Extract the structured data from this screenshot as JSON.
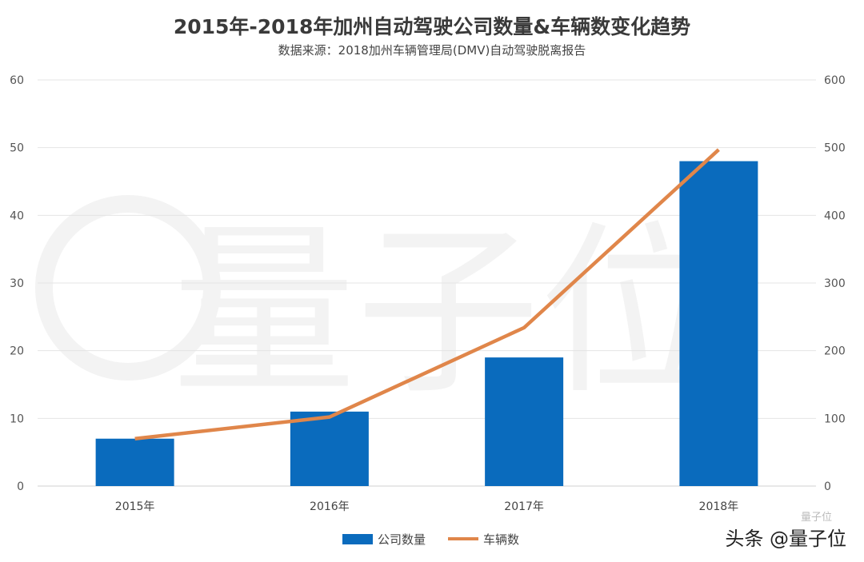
{
  "chart_data": {
    "type": "bar+line",
    "title": "2015年-2018年加州自动驾驶公司数量&车辆数变化趋势",
    "subtitle": "数据来源：2018加州车辆管理局(DMV)自动驾驶脱离报告",
    "categories": [
      "2015年",
      "2016年",
      "2017年",
      "2018年"
    ],
    "series": [
      {
        "name": "公司数量",
        "type": "bar",
        "axis": "left",
        "color": "#0a6bbd",
        "values": [
          7,
          11,
          19,
          48
        ]
      },
      {
        "name": "车辆数",
        "type": "line",
        "axis": "right",
        "color": "#e0864a",
        "values": [
          70,
          102,
          234,
          497
        ]
      }
    ],
    "y_left": {
      "range": [
        0,
        60
      ],
      "ticks": [
        "0",
        "10",
        "20",
        "30",
        "40",
        "50",
        "60"
      ]
    },
    "y_right": {
      "range": [
        0,
        600
      ],
      "ticks": [
        "0",
        "100",
        "200",
        "300",
        "400",
        "500",
        "600"
      ]
    },
    "grid": true,
    "legend": "bottom"
  },
  "watermark": {
    "text": "头条 @量子位",
    "small": "量子位",
    "background": "量子位"
  }
}
